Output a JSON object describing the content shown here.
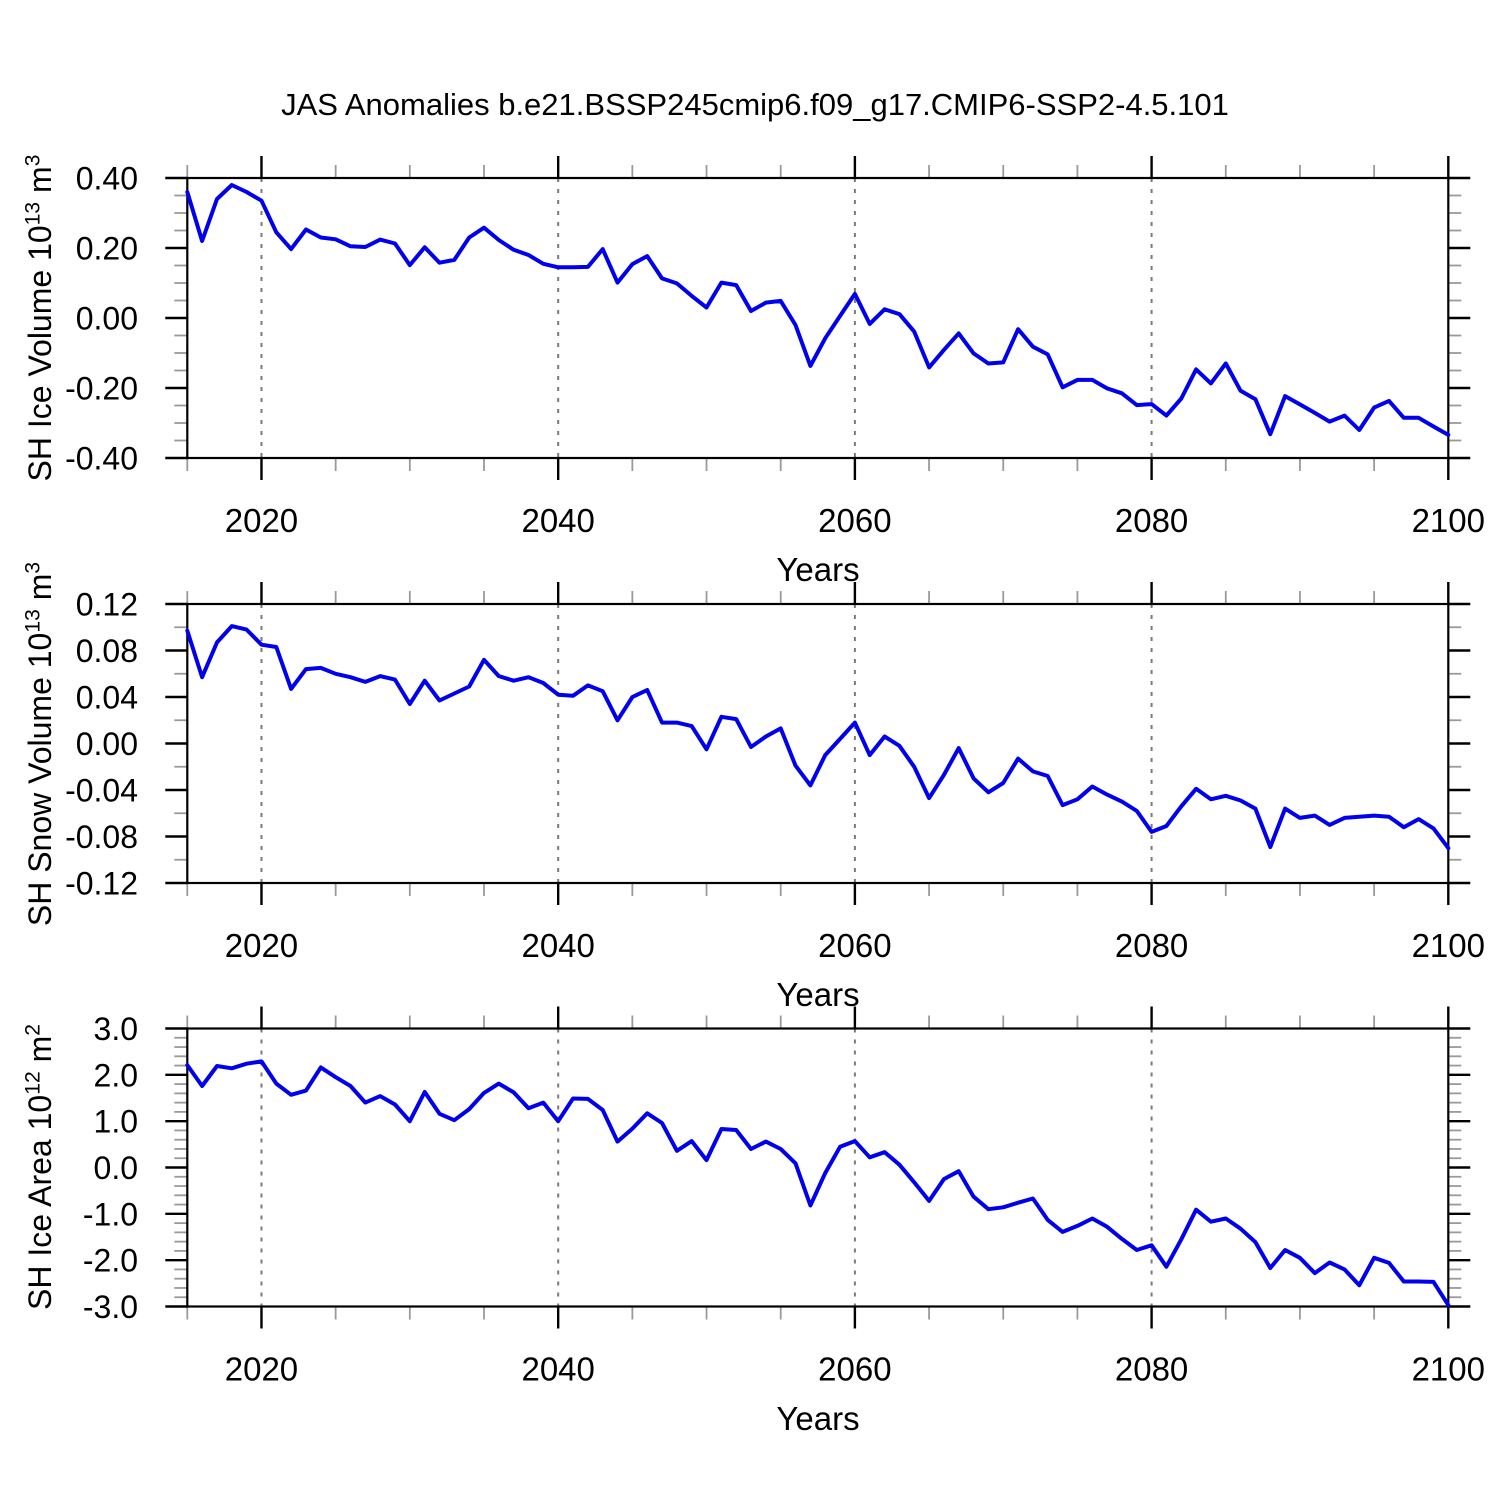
{
  "page": {
    "title": "JAS Anomalies b.e21.BSSP245cmip6.f09_g17.CMIP6-SSP2-4.5.101",
    "background": "#ffffff"
  },
  "style": {
    "line_color": "#0000ee",
    "frame_color": "#000000",
    "grid_color": "#7a7a7a",
    "major_tick_color": "#000000",
    "minor_tick_color": "#9a9a9a",
    "text_color": "#000000"
  },
  "chart_data": [
    {
      "type": "line",
      "name": "sh-ice-volume",
      "ylabel_text": "SH Ice Volume 10^13 m^3",
      "ylabel_prefix": "SH Ice Volume 10",
      "ylabel_sup1": "13",
      "ylabel_mid": " m",
      "ylabel_sup2": "3",
      "xlabel": "Years",
      "xlim": [
        2015,
        2100
      ],
      "ylim": [
        -0.4,
        0.4
      ],
      "xtick_values": [
        2020,
        2040,
        2060,
        2080,
        2100
      ],
      "xtick_labels": [
        "2020",
        "2040",
        "2060",
        "2080",
        "2100"
      ],
      "xtick_minor_step": 5,
      "grid_years": [
        2020,
        2040,
        2060,
        2080
      ],
      "ytick_values": [
        0.4,
        0.2,
        0.0,
        -0.2,
        -0.4
      ],
      "ytick_labels": [
        "0.40",
        "0.20",
        "0.00",
        "-0.20",
        "-0.40"
      ],
      "ytick_minor_step": 0.05,
      "grid": "x-dashed",
      "legend": "none",
      "x_start": 2015,
      "x_step": 1,
      "values": [
        0.36,
        0.22,
        0.34,
        0.38,
        0.36,
        0.335,
        0.245,
        0.197,
        0.253,
        0.23,
        0.225,
        0.205,
        0.203,
        0.224,
        0.213,
        0.151,
        0.202,
        0.158,
        0.166,
        0.23,
        0.258,
        0.223,
        0.195,
        0.18,
        0.155,
        0.145,
        0.145,
        0.146,
        0.197,
        0.101,
        0.154,
        0.177,
        0.113,
        0.099,
        0.063,
        0.03,
        0.101,
        0.094,
        0.02,
        0.044,
        0.049,
        -0.02,
        -0.137,
        -0.058,
        0.006,
        0.069,
        -0.017,
        0.025,
        0.011,
        -0.039,
        -0.141,
        -0.091,
        -0.044,
        -0.101,
        -0.13,
        -0.127,
        -0.032,
        -0.082,
        -0.104,
        -0.198,
        -0.177,
        -0.177,
        -0.201,
        -0.215,
        -0.249,
        -0.246,
        -0.279,
        -0.23,
        -0.147,
        -0.187,
        -0.13,
        -0.208,
        -0.232,
        -0.332,
        -0.223,
        -0.247,
        -0.271,
        -0.296,
        -0.279,
        -0.32,
        -0.256,
        -0.237,
        -0.285,
        -0.285,
        -0.31,
        -0.334
      ]
    },
    {
      "type": "line",
      "name": "sh-snow-volume",
      "ylabel_text": "SH Snow Volume 10^13 m^3",
      "ylabel_prefix": "SH Snow Volume 10",
      "ylabel_sup1": "13",
      "ylabel_mid": " m",
      "ylabel_sup2": "3",
      "xlabel": "Years",
      "xlim": [
        2015,
        2100
      ],
      "ylim": [
        -0.12,
        0.12
      ],
      "xtick_values": [
        2020,
        2040,
        2060,
        2080,
        2100
      ],
      "xtick_labels": [
        "2020",
        "2040",
        "2060",
        "2080",
        "2100"
      ],
      "xtick_minor_step": 5,
      "grid_years": [
        2020,
        2040,
        2060,
        2080
      ],
      "ytick_values": [
        0.12,
        0.08,
        0.04,
        0.0,
        -0.04,
        -0.08,
        -0.12
      ],
      "ytick_labels": [
        "0.12",
        "0.08",
        "0.04",
        "0.00",
        "-0.04",
        "-0.08",
        "-0.12"
      ],
      "ytick_minor_step": 0.02,
      "grid": "x-dashed",
      "legend": "none",
      "x_start": 2015,
      "x_step": 1,
      "values": [
        0.097,
        0.057,
        0.087,
        0.101,
        0.098,
        0.085,
        0.083,
        0.047,
        0.064,
        0.065,
        0.06,
        0.057,
        0.053,
        0.058,
        0.055,
        0.034,
        0.054,
        0.037,
        0.043,
        0.049,
        0.072,
        0.058,
        0.054,
        0.057,
        0.052,
        0.042,
        0.041,
        0.05,
        0.045,
        0.02,
        0.04,
        0.046,
        0.018,
        0.018,
        0.015,
        -0.005,
        0.023,
        0.021,
        -0.003,
        0.006,
        0.013,
        -0.019,
        -0.036,
        -0.01,
        0.004,
        0.018,
        -0.01,
        0.006,
        -0.002,
        -0.02,
        -0.047,
        -0.027,
        -0.004,
        -0.03,
        -0.042,
        -0.034,
        -0.013,
        -0.024,
        -0.028,
        -0.053,
        -0.048,
        -0.037,
        -0.044,
        -0.05,
        -0.058,
        -0.076,
        -0.071,
        -0.054,
        -0.039,
        -0.048,
        -0.045,
        -0.049,
        -0.056,
        -0.089,
        -0.056,
        -0.064,
        -0.062,
        -0.07,
        -0.064,
        -0.063,
        -0.062,
        -0.063,
        -0.072,
        -0.065,
        -0.073,
        -0.09
      ]
    },
    {
      "type": "line",
      "name": "sh-ice-area",
      "ylabel_text": "SH Ice Area 10^12 m^2",
      "ylabel_prefix": "SH Ice Area 10",
      "ylabel_sup1": "12",
      "ylabel_mid": " m",
      "ylabel_sup2": "2",
      "xlabel": "Years",
      "xlim": [
        2015,
        2100
      ],
      "ylim": [
        -3.0,
        3.0
      ],
      "xtick_values": [
        2020,
        2040,
        2060,
        2080,
        2100
      ],
      "xtick_labels": [
        "2020",
        "2040",
        "2060",
        "2080",
        "2100"
      ],
      "xtick_minor_step": 5,
      "grid_years": [
        2020,
        2040,
        2060,
        2080
      ],
      "ytick_values": [
        3.0,
        2.0,
        1.0,
        0.0,
        -1.0,
        -2.0,
        -3.0
      ],
      "ytick_labels": [
        "3.0",
        "2.0",
        "1.0",
        "0.0",
        "-1.0",
        "-2.0",
        "-3.0"
      ],
      "ytick_minor_step": 0.2,
      "grid": "x-dashed",
      "legend": "none",
      "x_start": 2015,
      "x_step": 1,
      "values": [
        2.21,
        1.76,
        2.19,
        2.14,
        2.24,
        2.29,
        1.81,
        1.57,
        1.66,
        2.16,
        1.95,
        1.76,
        1.4,
        1.54,
        1.36,
        1.0,
        1.63,
        1.16,
        1.02,
        1.26,
        1.61,
        1.81,
        1.62,
        1.28,
        1.4,
        1.0,
        1.49,
        1.48,
        1.24,
        0.56,
        0.84,
        1.17,
        0.96,
        0.36,
        0.57,
        0.16,
        0.83,
        0.81,
        0.4,
        0.56,
        0.4,
        0.09,
        -0.82,
        -0.12,
        0.45,
        0.57,
        0.22,
        0.33,
        0.06,
        -0.32,
        -0.72,
        -0.25,
        -0.08,
        -0.63,
        -0.9,
        -0.86,
        -0.76,
        -0.67,
        -1.13,
        -1.39,
        -1.26,
        -1.1,
        -1.28,
        -1.54,
        -1.78,
        -1.68,
        -2.14,
        -1.55,
        -0.91,
        -1.17,
        -1.1,
        -1.32,
        -1.61,
        -2.17,
        -1.78,
        -1.95,
        -2.28,
        -2.05,
        -2.2,
        -2.54,
        -1.95,
        -2.06,
        -2.46,
        -2.46,
        -2.47,
        -2.97
      ]
    }
  ]
}
